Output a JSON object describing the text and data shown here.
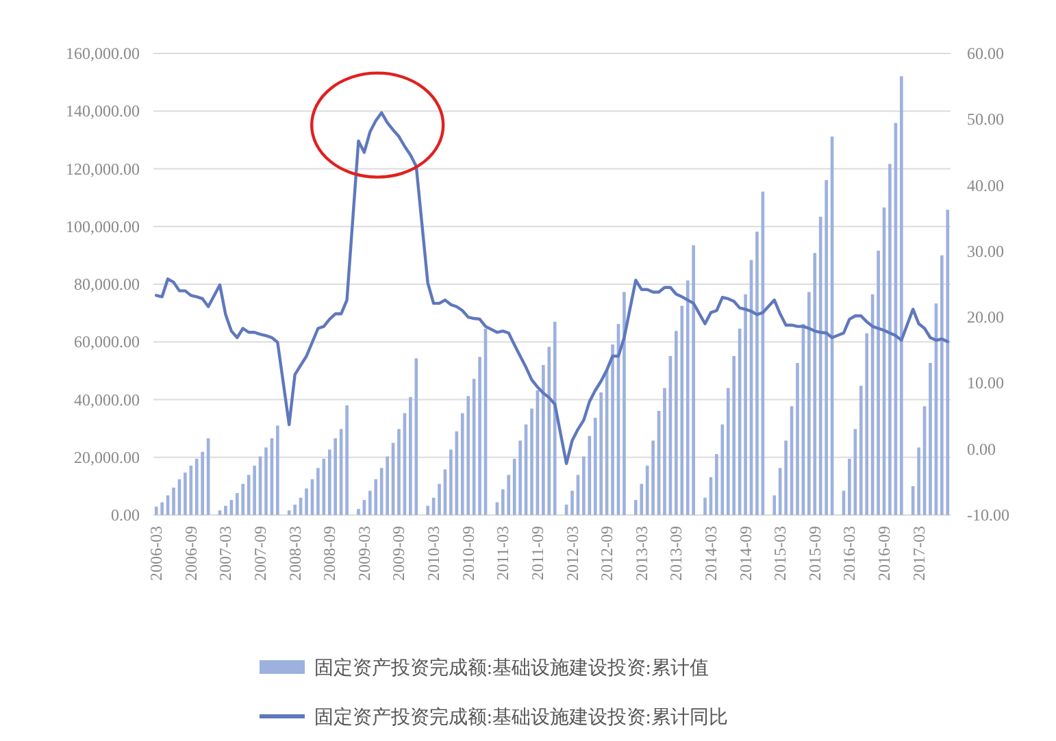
{
  "chart_data": {
    "type": "bar",
    "categories": [
      "2006-03",
      null,
      null,
      null,
      null,
      null,
      "2006-09",
      null,
      null,
      null,
      null,
      null,
      "2007-03",
      null,
      null,
      null,
      null,
      null,
      "2007-09",
      null,
      null,
      null,
      null,
      null,
      "2008-03",
      null,
      null,
      null,
      null,
      null,
      "2008-09",
      null,
      null,
      null,
      null,
      null,
      "2009-03",
      null,
      null,
      null,
      null,
      null,
      "2009-09",
      null,
      null,
      null,
      null,
      null,
      "2010-03",
      null,
      null,
      null,
      null,
      null,
      "2010-09",
      null,
      null,
      null,
      null,
      null,
      "2011-03",
      null,
      null,
      null,
      null,
      null,
      "2011-09",
      null,
      null,
      null,
      null,
      null,
      "2012-03",
      null,
      null,
      null,
      null,
      null,
      "2012-09",
      null,
      null,
      null,
      null,
      null,
      "2013-03",
      null,
      null,
      null,
      null,
      null,
      "2013-09",
      null,
      null,
      null,
      null,
      null,
      "2014-03",
      null,
      null,
      null,
      null,
      null,
      "2014-09",
      null,
      null,
      null,
      null,
      null,
      "2015-03",
      null,
      null,
      null,
      null,
      null,
      "2015-09",
      null,
      null,
      null,
      null,
      null,
      "2016-03",
      null,
      null,
      null,
      null,
      null,
      "2016-09",
      null,
      null,
      null,
      null,
      null,
      "2017-03",
      null,
      null,
      null,
      null,
      null
    ],
    "series": [
      {
        "name": "固定资产投资完成额:基础设施建设投资:累计值",
        "color": "#9db1de",
        "values": [
          2900,
          4400,
          6800,
          9500,
          12400,
          14700,
          17100,
          19500,
          21900,
          26600,
          null,
          1600,
          3200,
          5200,
          7600,
          10800,
          13900,
          17100,
          20300,
          23400,
          26600,
          31000,
          null,
          1600,
          3600,
          6000,
          9200,
          12400,
          16300,
          19500,
          22700,
          26600,
          29800,
          38000,
          null,
          2100,
          5200,
          8400,
          12400,
          16300,
          20300,
          25000,
          29800,
          35300,
          40900,
          54300,
          null,
          3200,
          6000,
          10800,
          15800,
          22700,
          29000,
          35300,
          41200,
          47200,
          54800,
          64600,
          null,
          4400,
          8900,
          13900,
          19500,
          25800,
          31400,
          36900,
          43200,
          52000,
          58300,
          67000,
          null,
          3600,
          8400,
          13900,
          20300,
          27400,
          33700,
          42500,
          50400,
          59100,
          66200,
          77300,
          null,
          5200,
          10800,
          17100,
          25800,
          36100,
          44000,
          55100,
          63800,
          72500,
          81300,
          93500,
          null,
          6000,
          13100,
          21100,
          31400,
          44000,
          55100,
          64600,
          76500,
          88400,
          98200,
          112100,
          null,
          6800,
          16300,
          25800,
          37700,
          52700,
          66200,
          77300,
          90800,
          103400,
          116100,
          131200,
          null,
          8400,
          19500,
          29800,
          44800,
          63000,
          76500,
          91600,
          106600,
          121700,
          135900,
          152100,
          null,
          10000,
          23400,
          37700,
          52700,
          73300,
          90000,
          105800
        ]
      },
      {
        "name": "固定资产投资完成额:基础设施建设投资:累计同比",
        "type": "line",
        "axis": "y2",
        "color": "#5f78bd",
        "values": [
          23.3,
          23.1,
          25.8,
          25.3,
          24.0,
          24.0,
          23.3,
          23.1,
          22.8,
          21.6,
          null,
          24.9,
          20.4,
          17.9,
          16.9,
          18.3,
          17.7,
          17.7,
          17.4,
          17.2,
          16.9,
          16.2,
          null,
          3.7,
          11.3,
          12.7,
          14.1,
          16.2,
          18.3,
          18.6,
          19.7,
          20.5,
          20.5,
          22.6,
          null,
          46.7,
          45.0,
          48.1,
          49.8,
          51.0,
          49.5,
          48.4,
          47.4,
          45.9,
          44.6,
          42.9,
          null,
          25.2,
          22.1,
          22.1,
          22.6,
          21.9,
          21.6,
          21.0,
          20.0,
          19.8,
          19.7,
          18.6,
          null,
          17.7,
          17.9,
          17.6,
          15.8,
          14.1,
          12.4,
          10.5,
          9.4,
          8.5,
          7.8,
          6.8,
          null,
          -2.2,
          1.3,
          3.0,
          4.4,
          7.2,
          8.9,
          10.3,
          12.0,
          14.1,
          14.1,
          16.9,
          null,
          25.6,
          24.2,
          24.2,
          23.8,
          23.8,
          24.5,
          24.5,
          23.5,
          23.1,
          22.6,
          22.1,
          null,
          19.0,
          20.7,
          21.0,
          23.0,
          22.8,
          22.4,
          21.4,
          21.2,
          20.9,
          20.4,
          20.7,
          null,
          22.6,
          20.5,
          18.8,
          18.8,
          18.6,
          18.6,
          18.3,
          17.9,
          17.7,
          17.6,
          16.9,
          null,
          17.6,
          19.7,
          20.2,
          20.2,
          19.3,
          18.6,
          18.3,
          18.0,
          17.6,
          17.2,
          16.5,
          null,
          21.2,
          19.0,
          18.3,
          16.9,
          16.5,
          16.7,
          16.3
        ]
      }
    ],
    "ylim": [
      0,
      160000
    ],
    "yticks": [
      {
        "value": 0,
        "label": "0.00"
      },
      {
        "value": 20000,
        "label": "20,000.00"
      },
      {
        "value": 40000,
        "label": "40,000.00"
      },
      {
        "value": 60000,
        "label": "60,000.00"
      },
      {
        "value": 80000,
        "label": "80,000.00"
      },
      {
        "value": 100000,
        "label": "100,000.00"
      },
      {
        "value": 120000,
        "label": "120,000.00"
      },
      {
        "value": 140000,
        "label": "140,000.00"
      },
      {
        "value": 160000,
        "label": "160,000.00"
      }
    ],
    "y2lim": [
      -10,
      60
    ],
    "y2ticks": [
      {
        "value": -10,
        "label": "-10.00"
      },
      {
        "value": 0,
        "label": "0.00"
      },
      {
        "value": 10,
        "label": "10.00"
      },
      {
        "value": 20,
        "label": "20.00"
      },
      {
        "value": 30,
        "label": "30.00"
      },
      {
        "value": 40,
        "label": "40.00"
      },
      {
        "value": 50,
        "label": "50.00"
      },
      {
        "value": 60,
        "label": "60.00"
      }
    ],
    "grid": "y",
    "legend": "bottom"
  }
}
